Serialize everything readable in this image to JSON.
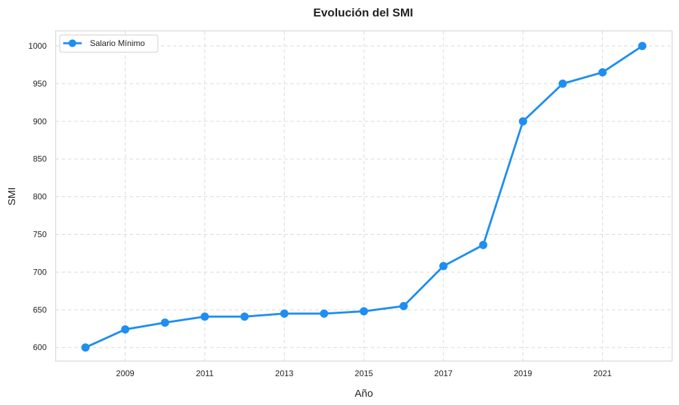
{
  "colors": {
    "series": "#1f8ef1",
    "grid": "#d9d9d9",
    "frame": "#cccccc",
    "text": "#222222"
  },
  "chart_data": {
    "type": "line",
    "title": "Evolución del SMI",
    "xlabel": "Año",
    "ylabel": "SMI",
    "xlim": [
      2007.25,
      2022.75
    ],
    "ylim": [
      582,
      1020
    ],
    "xticks": [
      2009,
      2011,
      2013,
      2015,
      2017,
      2019,
      2021
    ],
    "yticks": [
      600,
      650,
      700,
      750,
      800,
      850,
      900,
      950,
      1000
    ],
    "grid": true,
    "grid_style": "dashed",
    "legend_position": "top-left",
    "series": [
      {
        "name": "Salario Mínimo",
        "marker": "circle",
        "x": [
          2008,
          2009,
          2010,
          2011,
          2012,
          2013,
          2014,
          2015,
          2016,
          2017,
          2018,
          2019,
          2020,
          2021,
          2022
        ],
        "y": [
          600,
          624,
          633,
          641,
          641,
          645,
          645,
          648,
          655,
          708,
          736,
          900,
          950,
          965,
          1000
        ]
      }
    ]
  }
}
